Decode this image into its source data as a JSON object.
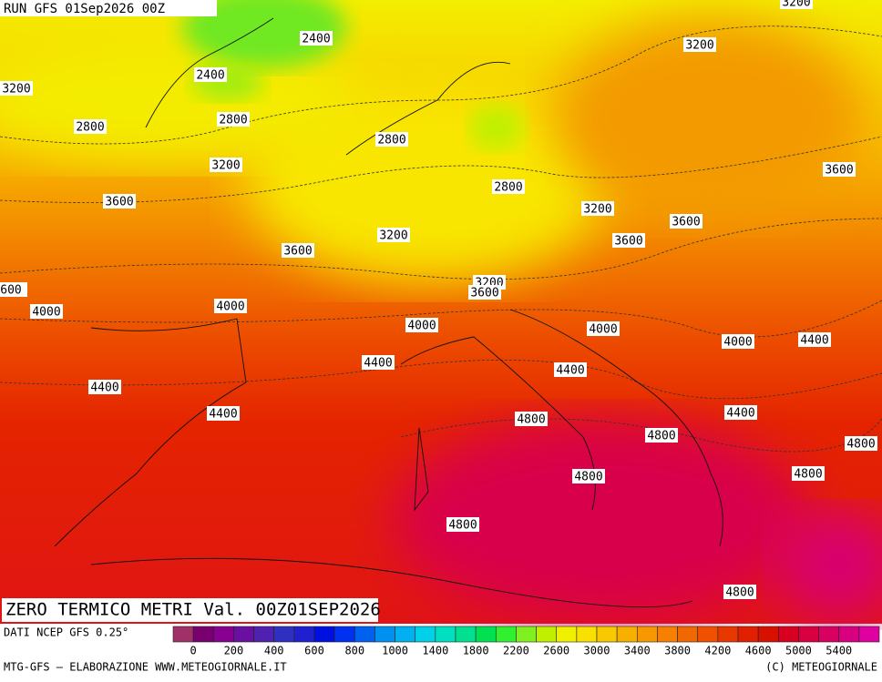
{
  "header": {
    "run": "RUN GFS 01Sep2026 00Z"
  },
  "contour_labels": [
    "3200",
    "2400",
    "3200",
    "2400",
    "3200",
    "2800",
    "2800",
    "2800",
    "3200",
    "3600",
    "2800",
    "3600",
    "3200",
    "3600",
    "3200",
    "3600",
    "3600",
    "3200",
    "3600",
    "600",
    "4000",
    "4000",
    "4000",
    "4000",
    "4000",
    "4400",
    "4400",
    "4400",
    "4400",
    "4400",
    "4400",
    "4800",
    "4800",
    "4800",
    "4800",
    "4800",
    "4800",
    "4800"
  ],
  "title": "ZERO TERMICO METRI Val. 00Z01SEP2026",
  "source": "DATI NCEP GFS 0.25°",
  "colorbar": {
    "colors": [
      "#a03068",
      "#780070",
      "#880090",
      "#6a10a0",
      "#5020b0",
      "#3030c0",
      "#2020d0",
      "#0010e0",
      "#0030f0",
      "#0060f0",
      "#0090f0",
      "#00b0f0",
      "#00d0e8",
      "#00e0c0",
      "#00e090",
      "#00e050",
      "#30f030",
      "#80f020",
      "#c0f000",
      "#f0f000",
      "#f8e000",
      "#f8c800",
      "#f8b000",
      "#f89800",
      "#f88000",
      "#f06800",
      "#f05000",
      "#e83800",
      "#e02000",
      "#d81000",
      "#d80020",
      "#d80040",
      "#d80060",
      "#d80080",
      "#e000a0"
    ],
    "labels": [
      "0",
      "200",
      "400",
      "600",
      "800",
      "1000",
      "1400",
      "1800",
      "2200",
      "2600",
      "3000",
      "3400",
      "3800",
      "4200",
      "4600",
      "5000",
      "5400"
    ]
  },
  "footer": {
    "left": "MTG-GFS – ELABORAZIONE WWW.METEOGIORNALE.IT",
    "right": "(C) METEOGIORNALE"
  }
}
